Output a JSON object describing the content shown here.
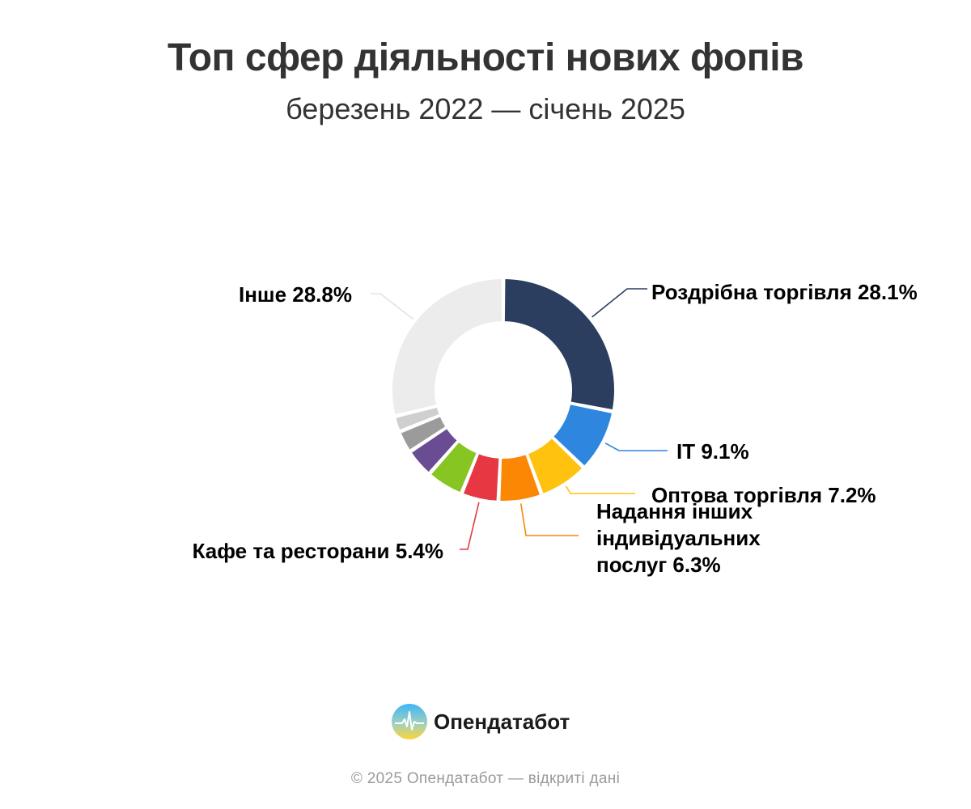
{
  "chart_data": {
    "type": "pie",
    "title": "Топ сфер діяльності нових фопів",
    "subtitle": "березень 2022 — січень 2025",
    "series": [
      {
        "name": "Роздрібна торгівля",
        "value": 28.1,
        "label": "Роздрібна торгівля 28.1%",
        "color": "#2c3e5f"
      },
      {
        "name": "IT",
        "value": 9.1,
        "label": "IT 9.1%",
        "color": "#2e86de"
      },
      {
        "name": "Оптова торгівля",
        "value": 7.2,
        "label": "Оптова торгівля 7.2%",
        "color": "#fec20f"
      },
      {
        "name": "Надання інших індивідуальних послуг",
        "value": 6.3,
        "label": "Надання інших індивідуальних послуг 6.3%",
        "label_lines": [
          "Надання інших",
          "індивідуальних",
          "послуг 6.3%"
        ],
        "color": "#fb8704"
      },
      {
        "name": "Кафе та ресторани",
        "value": 5.4,
        "label": "Кафе та ресторани 5.4%",
        "color": "#e63743"
      },
      {
        "name": "",
        "value": 5.4,
        "label": "",
        "color": "#87c523"
      },
      {
        "name": "",
        "value": 4.2,
        "label": "",
        "color": "#6a4c93"
      },
      {
        "name": "",
        "value": 3.2,
        "label": "",
        "color": "#9b9b9b"
      },
      {
        "name": "",
        "value": 2.3,
        "label": "",
        "color": "#cfcfcf"
      },
      {
        "name": "Інше",
        "value": 28.8,
        "label": "Інше 28.8%",
        "color": "#ececec"
      }
    ]
  },
  "brand": {
    "name": "Опендатабот",
    "colors": {
      "top": "#3fb6f5",
      "bottom": "#fcd535"
    }
  },
  "footer": {
    "text": "© 2025 Опендатабот — відкриті дані"
  }
}
